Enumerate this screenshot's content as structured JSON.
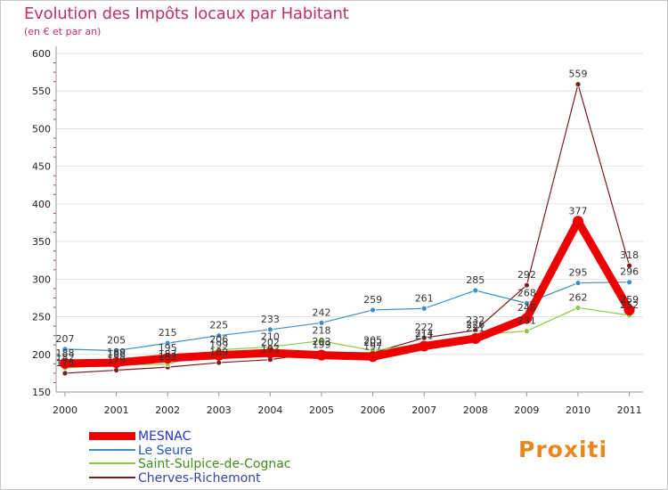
{
  "header": {
    "title": "Evolution des Impôts locaux par Habitant",
    "subtitle": "(en € et par an)"
  },
  "logo": {
    "text": "Proxiti"
  },
  "colors": {
    "title": "#c0306a",
    "axis_text": "#222222",
    "grid": "#e2e2e2",
    "tick": "#c0306a"
  },
  "chart_data": {
    "type": "line",
    "title": "Evolution des Impôts locaux par Habitant",
    "subtitle": "(en € et par an)",
    "xlabel": "",
    "ylabel": "",
    "ylim": [
      150,
      600
    ],
    "yticks": [
      150,
      200,
      250,
      300,
      350,
      400,
      450,
      500,
      550,
      600
    ],
    "categories": [
      "2000",
      "2001",
      "2002",
      "2003",
      "2004",
      "2005",
      "2006",
      "2007",
      "2008",
      "2009",
      "2010",
      "2011"
    ],
    "legend_position": "bottom-left",
    "series": [
      {
        "name": "MESNAC",
        "color": "#ee0000",
        "lineWidth": 9,
        "markerSize": 6,
        "values": [
          188,
          189,
          195,
          199,
          202,
          199,
          197,
          211,
          221,
          248,
          377,
          259
        ],
        "labels": [
          "188",
          "189",
          "195",
          "199",
          "202",
          "199",
          "197",
          "211",
          "221",
          "248",
          "377",
          "259"
        ]
      },
      {
        "name": "Le Seure",
        "color": "#3d8fc9",
        "lineWidth": 1.2,
        "markerSize": 3,
        "values": [
          207,
          205,
          215,
          225,
          233,
          242,
          259,
          261,
          285,
          268,
          295,
          296
        ],
        "labels": [
          "207",
          "205",
          "215",
          "225",
          "233",
          "242",
          "259",
          "261",
          "285",
          "268",
          "295",
          "296"
        ]
      },
      {
        "name": "Saint-Sulpice-de-Cognac",
        "color": "#88cc44",
        "lineWidth": 1.2,
        "markerSize": 3,
        "values": [
          182,
          186,
          187,
          206,
          210,
          218,
          205,
          214,
          226,
          231,
          262,
          252
        ],
        "labels": [
          "182",
          "186",
          "187",
          "206",
          "210",
          "218",
          "205",
          "214",
          "226",
          "231",
          "262",
          "252"
        ]
      },
      {
        "name": "Cherves-Richemont",
        "color": "#7a1e1e",
        "lineWidth": 1.2,
        "markerSize": 3,
        "values": [
          175,
          179,
          183,
          189,
          193,
          203,
          202,
          222,
          232,
          292,
          559,
          318
        ],
        "labels": [
          "175",
          "179",
          "183",
          "189",
          "193",
          "203",
          "202",
          "222",
          "232",
          "292",
          "559",
          "318"
        ]
      }
    ]
  }
}
